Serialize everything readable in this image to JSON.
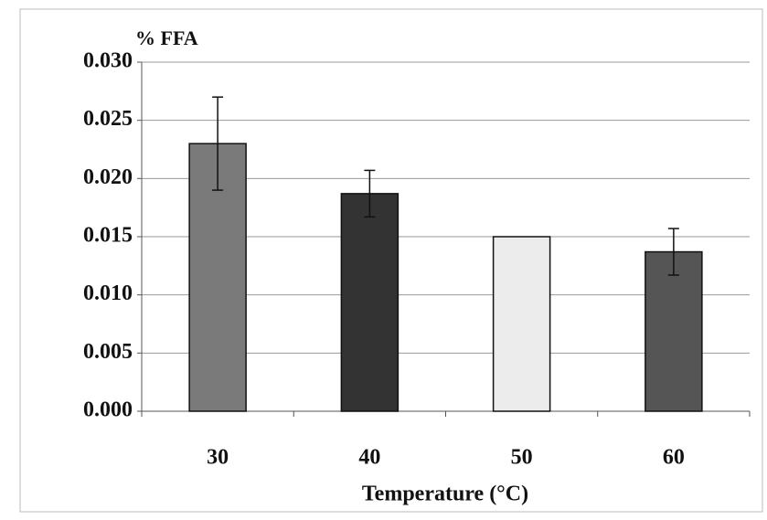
{
  "chart_data": {
    "type": "bar",
    "title": "% FFA",
    "x_label": "Temperature (°C)",
    "categories": [
      "30",
      "40",
      "50",
      "60"
    ],
    "values": [
      0.023,
      0.0187,
      0.015,
      0.0137
    ],
    "errors": [
      0.004,
      0.002,
      null,
      0.002
    ],
    "colors": [
      "#7a7a7a",
      "#333333",
      "#ececec",
      "#555555"
    ],
    "ylim": [
      0,
      0.03
    ],
    "yticks": [
      {
        "value": 0,
        "label": "0.000"
      },
      {
        "value": 0.005,
        "label": "0.005"
      },
      {
        "value": 0.01,
        "label": "0.010"
      },
      {
        "value": 0.015,
        "label": "0.015"
      },
      {
        "value": 0.02,
        "label": "0.020"
      },
      {
        "value": 0.025,
        "label": "0.025"
      },
      {
        "value": 0.03,
        "label": "0.030"
      }
    ],
    "grid": true
  }
}
